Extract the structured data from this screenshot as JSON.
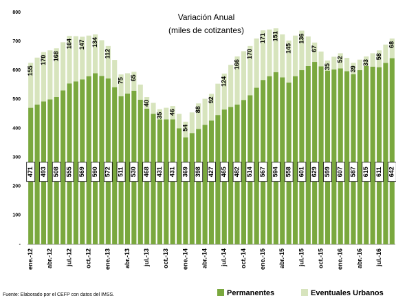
{
  "chart_data": {
    "type": "stacked_bar",
    "title": "Variación Anual",
    "subtitle": "(miles de cotizantes)",
    "categories": [
      "ene.-12",
      null,
      null,
      "abr.-12",
      null,
      null,
      "jul.-12",
      null,
      null,
      "oct.-12",
      null,
      null,
      "ene.-13",
      null,
      null,
      "abr.-13",
      null,
      null,
      "jul.-13",
      null,
      null,
      "oct.-13",
      null,
      null,
      "ene.-14",
      null,
      null,
      "abr.-14",
      null,
      null,
      "jul.-14",
      null,
      null,
      "oct.-14",
      null,
      null,
      "ene.-15",
      null,
      null,
      "abr.-15",
      null,
      null,
      "jul.-15",
      null,
      null,
      "oct.-15",
      null,
      null,
      "ene.-16",
      null,
      null,
      "abr.-16",
      null,
      null,
      "jul.-16",
      null,
      null
    ],
    "series": [
      {
        "name": "Permanentes",
        "color": "#7aa83e",
        "values": [
          471,
          482,
          493,
          500,
          508,
          531,
          555,
          562,
          569,
          580,
          590,
          581,
          572,
          542,
          511,
          520,
          530,
          499,
          468,
          450,
          431,
          431,
          431,
          400,
          369,
          384,
          398,
          412,
          427,
          446,
          465,
          474,
          482,
          498,
          514,
          540,
          567,
          580,
          594,
          576,
          558,
          580,
          601,
          615,
          629,
          614,
          599,
          603,
          607,
          597,
          587,
          601,
          615,
          613,
          611,
          626,
          642
        ]
      },
      {
        "name": "Eventuales Urbanos",
        "color": "#d7e4bd",
        "values": [
          155,
          162,
          170,
          169,
          168,
          166,
          164,
          156,
          147,
          140,
          134,
          123,
          112,
          94,
          75,
          70,
          65,
          52,
          40,
          38,
          35,
          40,
          46,
          50,
          54,
          71,
          88,
          90,
          92,
          108,
          124,
          145,
          166,
          168,
          170,
          170,
          171,
          161,
          151,
          148,
          145,
          140,
          136,
          102,
          67,
          51,
          35,
          44,
          52,
          46,
          39,
          36,
          33,
          46,
          58,
          63,
          68
        ]
      }
    ],
    "ylim": [
      0,
      800
    ],
    "yticks": [
      {
        "value": 0,
        "label": "-"
      },
      100,
      200,
      300,
      400,
      500,
      600,
      700,
      800
    ],
    "footnote": "Fuente: Elaborado por el CEFP con datos del IMSS."
  }
}
